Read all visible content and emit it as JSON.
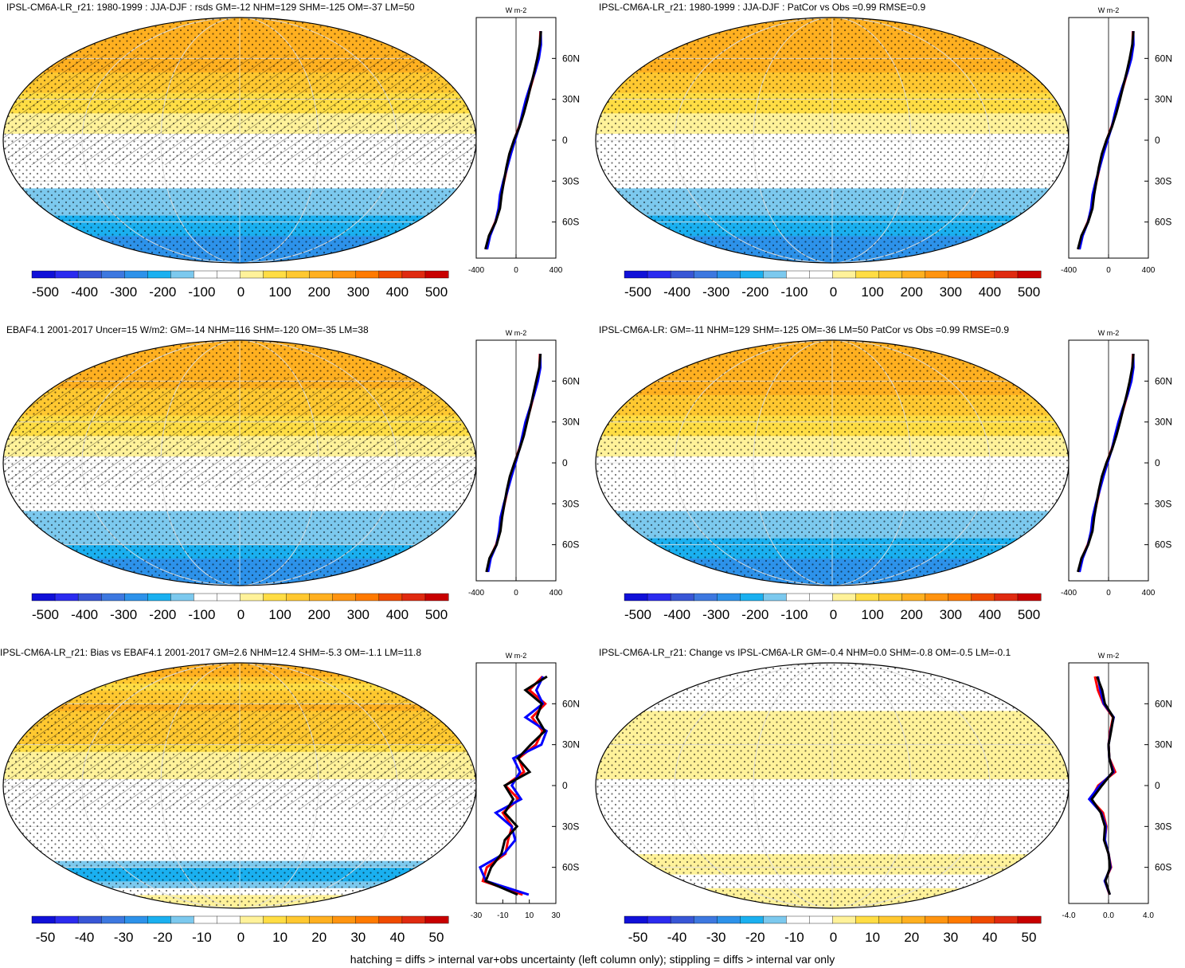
{
  "panels": [
    {
      "id": "p1",
      "title": "IPSL-CM6A-LR_r21: 1980-1999 : JJA-DJF : rsds GM=-12 NHM=129 SHM=-125 OM=-37 LM=50",
      "colorbar_ticks": [
        "-500",
        "-400",
        "-300",
        "-200",
        "-100",
        "0",
        "100",
        "200",
        "300",
        "400",
        "500"
      ],
      "profile_ticks": [
        "-400",
        "0",
        "400"
      ],
      "profile_unit": "W m-2",
      "lat_ticks": [
        "60N",
        "30N",
        "0",
        "30S",
        "60S"
      ],
      "hatching": true,
      "stippling": true
    },
    {
      "id": "p2",
      "title": "IPSL-CM6A-LR_r21: 1980-1999 : JJA-DJF : PatCor vs Obs =0.99 RMSE=0.9",
      "colorbar_ticks": [
        "-500",
        "-400",
        "-300",
        "-200",
        "-100",
        "0",
        "100",
        "200",
        "300",
        "400",
        "500"
      ],
      "profile_ticks": [
        "-400",
        "0",
        "400"
      ],
      "profile_unit": "W m-2",
      "lat_ticks": [
        "60N",
        "30N",
        "0",
        "30S",
        "60S"
      ],
      "hatching": false,
      "stippling": true
    },
    {
      "id": "p3",
      "title": "EBAF4.1 2001-2017 Uncer=15 W/m2: GM=-14 NHM=116 SHM=-120 OM=-35 LM=38",
      "colorbar_ticks": [
        "-500",
        "-400",
        "-300",
        "-200",
        "-100",
        "0",
        "100",
        "200",
        "300",
        "400",
        "500"
      ],
      "profile_ticks": [
        "-400",
        "0",
        "400"
      ],
      "profile_unit": "W m-2",
      "lat_ticks": [
        "60N",
        "30N",
        "0",
        "30S",
        "60S"
      ],
      "hatching": true,
      "stippling": true
    },
    {
      "id": "p4",
      "title": "IPSL-CM6A-LR: GM=-11 NHM=129 SHM=-125 OM=-36 LM=50 PatCor vs Obs =0.99 RMSE=0.9",
      "colorbar_ticks": [
        "-500",
        "-400",
        "-300",
        "-200",
        "-100",
        "0",
        "100",
        "200",
        "300",
        "400",
        "500"
      ],
      "profile_ticks": [
        "-400",
        "0",
        "400"
      ],
      "profile_unit": "W m-2",
      "lat_ticks": [
        "60N",
        "30N",
        "0",
        "30S",
        "60S"
      ],
      "hatching": false,
      "stippling": true
    },
    {
      "id": "p5",
      "title": "IPSL-CM6A-LR_r21: Bias vs EBAF4.1 2001-2017 GM=2.6 NHM=12.4 SHM=-5.3 OM=-1.1 LM=11.8",
      "colorbar_ticks": [
        "-50",
        "-40",
        "-30",
        "-20",
        "-10",
        "0",
        "10",
        "20",
        "30",
        "40",
        "50"
      ],
      "profile_ticks": [
        "-30",
        "-10",
        "10",
        "30"
      ],
      "profile_unit": "W m-2",
      "lat_ticks": [
        "60N",
        "30N",
        "0",
        "30S",
        "60S"
      ],
      "hatching": true,
      "stippling": true
    },
    {
      "id": "p6",
      "title": "IPSL-CM6A-LR_r21: Change vs IPSL-CM6A-LR GM=-0.4 NHM=0.0 SHM=-0.8 OM=-0.5 LM=-0.1",
      "colorbar_ticks": [
        "-50",
        "-40",
        "-30",
        "-20",
        "-10",
        "0",
        "10",
        "20",
        "30",
        "40",
        "50"
      ],
      "profile_ticks": [
        "-4.0",
        "0.0",
        "4.0"
      ],
      "profile_unit": "W m-2",
      "lat_ticks": [
        "60N",
        "30N",
        "0",
        "30S",
        "60S"
      ],
      "hatching": false,
      "stippling": true
    }
  ],
  "colors": {
    "palette": [
      "#1010d8",
      "#2b2bef",
      "#3856d6",
      "#3d78e0",
      "#2d92ea",
      "#1ab0f0",
      "#7cc9ee",
      "#ffffff",
      "#ffffff",
      "#fff29a",
      "#ffdd44",
      "#ffc830",
      "#ffb020",
      "#ff9410",
      "#ff7a00",
      "#f04a00",
      "#e02a10",
      "#c80000"
    ],
    "model": "#0000ff",
    "obs": "#ff0000",
    "mean": "#000000"
  },
  "chart_data": [
    {
      "type": "heatmap",
      "panel": "p1",
      "units": "W m-2",
      "xlabel": "",
      "ylabel": "",
      "zonal_profile": {
        "lat": [
          -80,
          -70,
          -60,
          -50,
          -40,
          -30,
          -20,
          -10,
          0,
          10,
          20,
          30,
          40,
          50,
          60,
          70,
          80
        ],
        "values": [
          -300,
          -270,
          -210,
          -170,
          -150,
          -120,
          -90,
          -60,
          -20,
          30,
          70,
          110,
          150,
          190,
          220,
          240,
          245
        ]
      }
    },
    {
      "type": "heatmap",
      "panel": "p2",
      "units": "W m-2",
      "zonal_profile": {
        "lat": [
          -80,
          -70,
          -60,
          -50,
          -40,
          -30,
          -20,
          -10,
          0,
          10,
          20,
          30,
          40,
          50,
          60,
          70,
          80
        ],
        "values": [
          -300,
          -270,
          -210,
          -170,
          -150,
          -120,
          -90,
          -60,
          -20,
          30,
          70,
          110,
          150,
          190,
          220,
          240,
          245
        ]
      }
    },
    {
      "type": "heatmap",
      "panel": "p3",
      "units": "W m-2",
      "zonal_profile": {
        "lat": [
          -80,
          -70,
          -60,
          -50,
          -40,
          -30,
          -20,
          -10,
          0,
          10,
          20,
          30,
          40,
          50,
          60,
          70,
          80
        ],
        "values": [
          -290,
          -265,
          -200,
          -165,
          -145,
          -115,
          -85,
          -55,
          -15,
          30,
          70,
          105,
          145,
          180,
          210,
          235,
          240
        ]
      }
    },
    {
      "type": "heatmap",
      "panel": "p4",
      "units": "W m-2",
      "zonal_profile": {
        "lat": [
          -80,
          -70,
          -60,
          -50,
          -40,
          -30,
          -20,
          -10,
          0,
          10,
          20,
          30,
          40,
          50,
          60,
          70,
          80
        ],
        "values": [
          -300,
          -270,
          -210,
          -170,
          -150,
          -120,
          -90,
          -60,
          -20,
          30,
          70,
          110,
          150,
          190,
          220,
          240,
          245
        ]
      }
    },
    {
      "type": "heatmap",
      "panel": "p5",
      "units": "W m-2",
      "zonal_profile": {
        "lat": [
          -80,
          -70,
          -60,
          -50,
          -40,
          -30,
          -20,
          -10,
          0,
          10,
          20,
          30,
          40,
          50,
          60,
          70,
          80
        ],
        "values": [
          5,
          -25,
          -22,
          -8,
          -6,
          -3,
          -10,
          2,
          -8,
          6,
          2,
          15,
          20,
          12,
          22,
          10,
          20
        ]
      }
    },
    {
      "type": "heatmap",
      "panel": "p6",
      "units": "W m-2",
      "zonal_profile": {
        "lat": [
          -80,
          -70,
          -60,
          -50,
          -40,
          -30,
          -20,
          -10,
          0,
          10,
          20,
          30,
          40,
          50,
          60,
          70,
          80
        ],
        "values": [
          0.1,
          -0.3,
          0.2,
          0.0,
          -0.5,
          -0.3,
          -0.6,
          -1.5,
          -0.8,
          0.6,
          0.1,
          0.0,
          0.2,
          0.4,
          -0.4,
          -0.9,
          -1.5
        ]
      }
    }
  ],
  "footer": "hatching = diffs > internal var+obs uncertainty (left column only); stippling = diffs > internal var only"
}
